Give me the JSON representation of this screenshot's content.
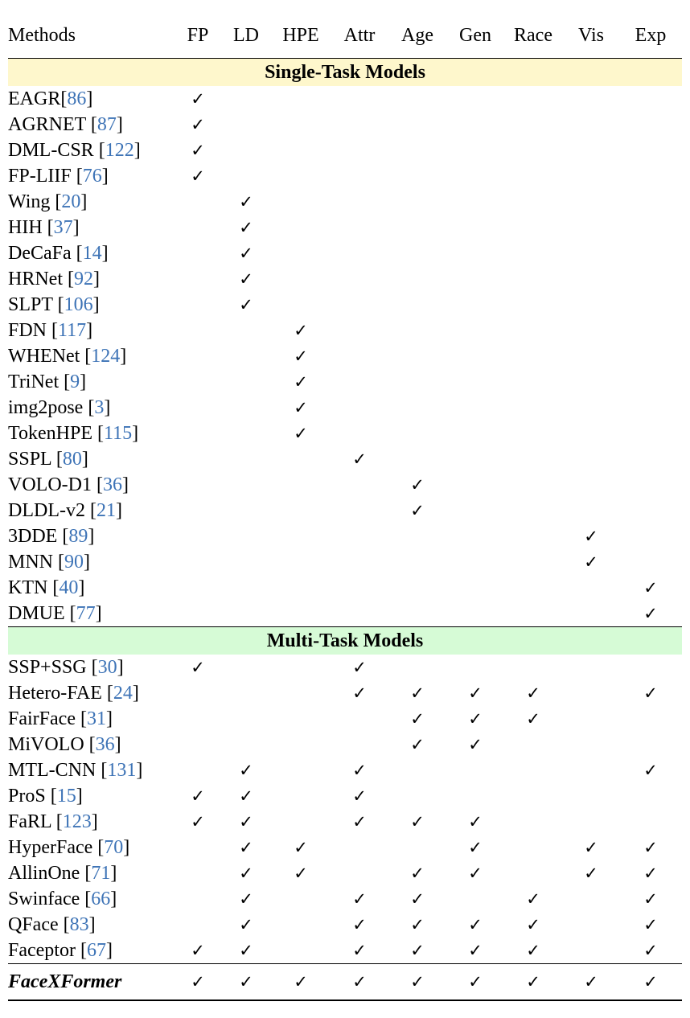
{
  "columns": [
    "Methods",
    "FP",
    "LD",
    "HPE",
    "Attr",
    "Age",
    "Gen",
    "Race",
    "Vis",
    "Exp"
  ],
  "check_mark": "✓",
  "sections": [
    {
      "title": "Single-Task Models",
      "rows": [
        {
          "name": "EAGR",
          "ref": "86",
          "space": false,
          "checks": [
            1,
            0,
            0,
            0,
            0,
            0,
            0,
            0,
            0
          ]
        },
        {
          "name": "AGRNET",
          "ref": "87",
          "space": true,
          "checks": [
            1,
            0,
            0,
            0,
            0,
            0,
            0,
            0,
            0
          ]
        },
        {
          "name": "DML-CSR",
          "ref": "122",
          "space": true,
          "checks": [
            1,
            0,
            0,
            0,
            0,
            0,
            0,
            0,
            0
          ]
        },
        {
          "name": "FP-LIIF",
          "ref": "76",
          "space": true,
          "checks": [
            1,
            0,
            0,
            0,
            0,
            0,
            0,
            0,
            0
          ]
        },
        {
          "name": "Wing",
          "ref": "20",
          "space": true,
          "checks": [
            0,
            1,
            0,
            0,
            0,
            0,
            0,
            0,
            0
          ]
        },
        {
          "name": "HIH",
          "ref": "37",
          "space": true,
          "checks": [
            0,
            1,
            0,
            0,
            0,
            0,
            0,
            0,
            0
          ]
        },
        {
          "name": "DeCaFa",
          "ref": "14",
          "space": true,
          "checks": [
            0,
            1,
            0,
            0,
            0,
            0,
            0,
            0,
            0
          ]
        },
        {
          "name": "HRNet",
          "ref": "92",
          "space": true,
          "checks": [
            0,
            1,
            0,
            0,
            0,
            0,
            0,
            0,
            0
          ]
        },
        {
          "name": "SLPT",
          "ref": "106",
          "space": true,
          "checks": [
            0,
            1,
            0,
            0,
            0,
            0,
            0,
            0,
            0
          ]
        },
        {
          "name": "FDN",
          "ref": "117",
          "space": true,
          "checks": [
            0,
            0,
            1,
            0,
            0,
            0,
            0,
            0,
            0
          ]
        },
        {
          "name": "WHENet",
          "ref": "124",
          "space": true,
          "checks": [
            0,
            0,
            1,
            0,
            0,
            0,
            0,
            0,
            0
          ]
        },
        {
          "name": "TriNet",
          "ref": "9",
          "space": true,
          "checks": [
            0,
            0,
            1,
            0,
            0,
            0,
            0,
            0,
            0
          ]
        },
        {
          "name": "img2pose",
          "ref": "3",
          "space": true,
          "checks": [
            0,
            0,
            1,
            0,
            0,
            0,
            0,
            0,
            0
          ]
        },
        {
          "name": "TokenHPE",
          "ref": "115",
          "space": true,
          "checks": [
            0,
            0,
            1,
            0,
            0,
            0,
            0,
            0,
            0
          ]
        },
        {
          "name": "SSPL",
          "ref": "80",
          "space": true,
          "checks": [
            0,
            0,
            0,
            1,
            0,
            0,
            0,
            0,
            0
          ]
        },
        {
          "name": "VOLO-D1",
          "ref": "36",
          "space": true,
          "checks": [
            0,
            0,
            0,
            0,
            1,
            0,
            0,
            0,
            0
          ]
        },
        {
          "name": "DLDL-v2",
          "ref": "21",
          "space": true,
          "checks": [
            0,
            0,
            0,
            0,
            1,
            0,
            0,
            0,
            0
          ]
        },
        {
          "name": "3DDE",
          "ref": "89",
          "space": true,
          "checks": [
            0,
            0,
            0,
            0,
            0,
            0,
            0,
            1,
            0
          ]
        },
        {
          "name": "MNN",
          "ref": "90",
          "space": true,
          "checks": [
            0,
            0,
            0,
            0,
            0,
            0,
            0,
            1,
            0
          ]
        },
        {
          "name": "KTN",
          "ref": "40",
          "space": true,
          "checks": [
            0,
            0,
            0,
            0,
            0,
            0,
            0,
            0,
            1
          ]
        },
        {
          "name": "DMUE",
          "ref": "77",
          "space": true,
          "checks": [
            0,
            0,
            0,
            0,
            0,
            0,
            0,
            0,
            1
          ]
        }
      ]
    },
    {
      "title": "Multi-Task Models",
      "rows": [
        {
          "name": "SSP+SSG",
          "ref": "30",
          "space": true,
          "checks": [
            1,
            0,
            0,
            1,
            0,
            0,
            0,
            0,
            0
          ]
        },
        {
          "name": "Hetero-FAE",
          "ref": "24",
          "space": true,
          "checks": [
            0,
            0,
            0,
            1,
            1,
            1,
            1,
            0,
            1
          ]
        },
        {
          "name": "FairFace",
          "ref": "31",
          "space": true,
          "checks": [
            0,
            0,
            0,
            0,
            1,
            1,
            1,
            0,
            0
          ]
        },
        {
          "name": "MiVOLO",
          "ref": "36",
          "space": true,
          "checks": [
            0,
            0,
            0,
            0,
            1,
            1,
            0,
            0,
            0
          ]
        },
        {
          "name": "MTL-CNN",
          "ref": "131",
          "space": true,
          "checks": [
            0,
            1,
            0,
            1,
            0,
            0,
            0,
            0,
            1
          ]
        },
        {
          "name": "ProS",
          "ref": "15",
          "space": true,
          "checks": [
            1,
            1,
            0,
            1,
            0,
            0,
            0,
            0,
            0
          ]
        },
        {
          "name": "FaRL",
          "ref": "123",
          "space": true,
          "checks": [
            1,
            1,
            0,
            1,
            1,
            1,
            0,
            0,
            0
          ]
        },
        {
          "name": "HyperFace",
          "ref": "70",
          "space": true,
          "checks": [
            0,
            1,
            1,
            0,
            0,
            1,
            0,
            1,
            1
          ]
        },
        {
          "name": "AllinOne",
          "ref": "71",
          "space": true,
          "checks": [
            0,
            1,
            1,
            0,
            1,
            1,
            0,
            1,
            1
          ]
        },
        {
          "name": "Swinface",
          "ref": "66",
          "space": true,
          "checks": [
            0,
            1,
            0,
            1,
            1,
            0,
            1,
            0,
            1
          ]
        },
        {
          "name": "QFace",
          "ref": "83",
          "space": true,
          "checks": [
            0,
            1,
            0,
            1,
            1,
            1,
            1,
            0,
            1
          ]
        },
        {
          "name": "Faceptor",
          "ref": "67",
          "space": true,
          "checks": [
            1,
            1,
            0,
            1,
            1,
            1,
            1,
            0,
            1
          ]
        }
      ]
    }
  ],
  "final_row": {
    "name": "FaceXFormer",
    "checks": [
      1,
      1,
      1,
      1,
      1,
      1,
      1,
      1,
      1
    ]
  }
}
